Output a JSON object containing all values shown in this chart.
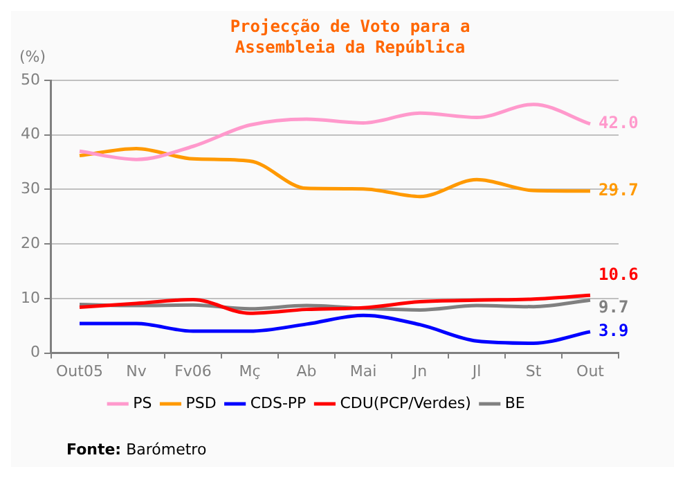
{
  "chart_data": {
    "type": "line",
    "title": "Projecção de Voto para a Assembleia da República",
    "ylabel": "(%)",
    "categories": [
      "Out05",
      "Nv",
      "Fv06",
      "Mç",
      "Ab",
      "Mai",
      "Jn",
      "Jl",
      "St",
      "Out"
    ],
    "series": [
      {
        "name": "PS",
        "color": "#ff99cc",
        "values": [
          37,
          35.5,
          37.9,
          41.8,
          42.9,
          42.2,
          44.0,
          43.2,
          45.6,
          42.0
        ],
        "value_labels": [
          null,
          null,
          null,
          null,
          null,
          null,
          null,
          null,
          null,
          "42.0"
        ]
      },
      {
        "name": "PSD",
        "color": "#ff9900",
        "values": [
          36.2,
          37.5,
          35.6,
          35.2,
          30.2,
          30.1,
          28.7,
          31.8,
          29.8,
          29.7
        ],
        "value_labels": [
          null,
          null,
          null,
          null,
          null,
          null,
          null,
          null,
          null,
          "29.7"
        ]
      },
      {
        "name": "CDS-PP",
        "color": "#0000ff",
        "values": [
          5.4,
          5.4,
          4.0,
          4.0,
          5.3,
          6.9,
          5.2,
          2.2,
          1.8,
          3.9
        ],
        "value_labels": [
          null,
          null,
          null,
          null,
          null,
          null,
          null,
          null,
          null,
          "3.9"
        ]
      },
      {
        "name": "CDU(PCP/Verdes)",
        "color": "#ff0000",
        "values": [
          8.4,
          9.1,
          9.8,
          7.3,
          8.0,
          8.3,
          9.4,
          9.7,
          9.9,
          10.6
        ],
        "value_labels": [
          null,
          null,
          null,
          null,
          null,
          null,
          null,
          null,
          null,
          "10.6"
        ]
      },
      {
        "name": "BE",
        "color": "#808080",
        "values": [
          8.9,
          8.7,
          8.8,
          8.1,
          8.7,
          8.2,
          7.9,
          8.7,
          8.5,
          9.7
        ],
        "value_labels": [
          null,
          null,
          null,
          null,
          null,
          null,
          null,
          null,
          null,
          "9.7"
        ]
      }
    ],
    "ylim": [
      0,
      50
    ],
    "yticks": [
      0,
      10,
      20,
      30,
      40,
      50
    ],
    "grid": "y",
    "legend": "bottom",
    "marker": "none",
    "line_style": "solid",
    "annotations": [
      "Fonte: Barómetro"
    ]
  }
}
